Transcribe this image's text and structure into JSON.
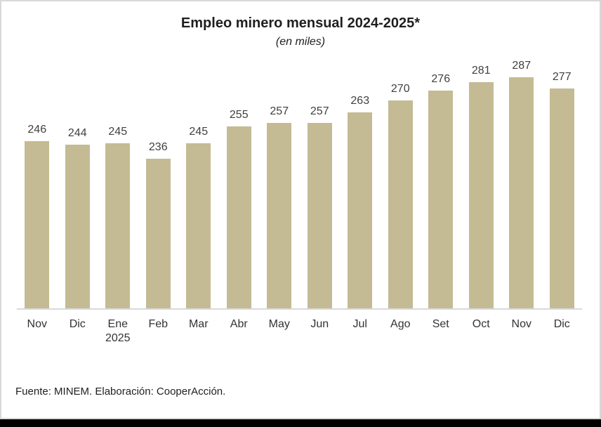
{
  "chart_data": {
    "type": "bar",
    "title": "Empleo minero mensual 2024-2025*",
    "subtitle": "(en miles)",
    "categories": [
      "Nov",
      "Dic",
      "Ene",
      "Feb",
      "Mar",
      "Abr",
      "May",
      "Jun",
      "Jul",
      "Ago",
      "Set",
      "Oct",
      "Nov",
      "Dic"
    ],
    "category_sublabels": [
      "",
      "",
      "2025",
      "",
      "",
      "",
      "",
      "",
      "",
      "",
      "",
      "",
      "",
      ""
    ],
    "values": [
      246,
      244,
      245,
      236,
      245,
      255,
      257,
      257,
      263,
      270,
      276,
      281,
      287,
      277
    ],
    "xlabel": "",
    "ylabel": "",
    "ylim": [
      148,
      294
    ],
    "grid": false,
    "legend": false,
    "bar_color": "#c4bb94",
    "value_label_color": "#404040",
    "axis_line_color": "#d9d9d9"
  },
  "footer": {
    "source": "Fuente: MINEM. Elaboración: CooperAcción."
  }
}
